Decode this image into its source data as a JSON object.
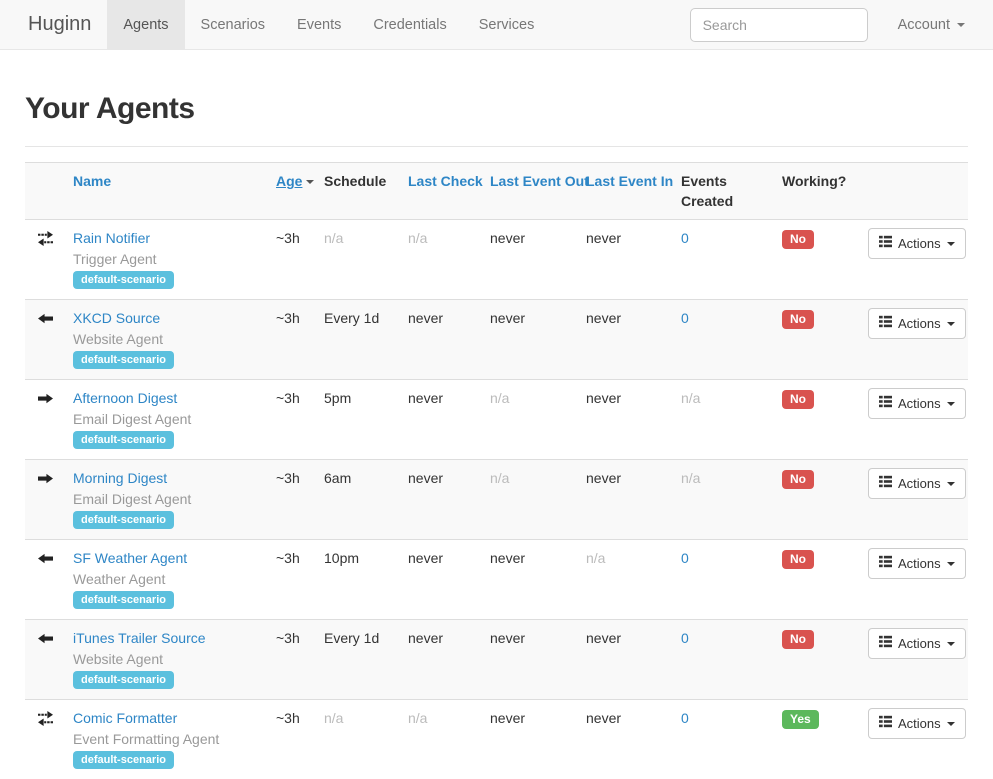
{
  "navbar": {
    "brand": "Huginn",
    "items": [
      {
        "label": "Agents",
        "active": true
      },
      {
        "label": "Scenarios",
        "active": false
      },
      {
        "label": "Events",
        "active": false
      },
      {
        "label": "Credentials",
        "active": false
      },
      {
        "label": "Services",
        "active": false
      }
    ],
    "search": {
      "placeholder": "Search"
    },
    "account": {
      "label": "Account"
    }
  },
  "page": {
    "title": "Your Agents"
  },
  "table": {
    "columns": [
      {
        "key": "icon",
        "label": "",
        "style": "plain"
      },
      {
        "key": "name",
        "label": "Name",
        "style": "link"
      },
      {
        "key": "age",
        "label": "Age",
        "style": "link",
        "sorted": "desc"
      },
      {
        "key": "schedule",
        "label": "Schedule",
        "style": "plain"
      },
      {
        "key": "last_check",
        "label": "Last Check",
        "style": "link"
      },
      {
        "key": "last_event_out",
        "label": "Last Event Out",
        "style": "link"
      },
      {
        "key": "last_event_in",
        "label": "Last Event In",
        "style": "link"
      },
      {
        "key": "events_created",
        "label": "Events Created",
        "style": "plain"
      },
      {
        "key": "working",
        "label": "Working?",
        "style": "plain"
      },
      {
        "key": "actions",
        "label": "",
        "style": "plain"
      }
    ],
    "actions_button_label": "Actions",
    "rows": [
      {
        "icon": "transfer",
        "name": "Rain Notifier",
        "type": "Trigger Agent",
        "scenario": "default-scenario",
        "age": "~3h",
        "schedule": "n/a",
        "last_check": "n/a",
        "last_event_out": "never",
        "last_event_in": "never",
        "events_created": "0",
        "working": "No"
      },
      {
        "icon": "arrow-left",
        "name": "XKCD Source",
        "type": "Website Agent",
        "scenario": "default-scenario",
        "age": "~3h",
        "schedule": "Every 1d",
        "last_check": "never",
        "last_event_out": "never",
        "last_event_in": "never",
        "events_created": "0",
        "working": "No"
      },
      {
        "icon": "arrow-right",
        "name": "Afternoon Digest",
        "type": "Email Digest Agent",
        "scenario": "default-scenario",
        "age": "~3h",
        "schedule": "5pm",
        "last_check": "never",
        "last_event_out": "n/a",
        "last_event_in": "never",
        "events_created": "n/a",
        "working": "No"
      },
      {
        "icon": "arrow-right",
        "name": "Morning Digest",
        "type": "Email Digest Agent",
        "scenario": "default-scenario",
        "age": "~3h",
        "schedule": "6am",
        "last_check": "never",
        "last_event_out": "n/a",
        "last_event_in": "never",
        "events_created": "n/a",
        "working": "No"
      },
      {
        "icon": "arrow-left",
        "name": "SF Weather Agent",
        "type": "Weather Agent",
        "scenario": "default-scenario",
        "age": "~3h",
        "schedule": "10pm",
        "last_check": "never",
        "last_event_out": "never",
        "last_event_in": "n/a",
        "events_created": "0",
        "working": "No"
      },
      {
        "icon": "arrow-left",
        "name": "iTunes Trailer Source",
        "type": "Website Agent",
        "scenario": "default-scenario",
        "age": "~3h",
        "schedule": "Every 1d",
        "last_check": "never",
        "last_event_out": "never",
        "last_event_in": "never",
        "events_created": "0",
        "working": "No"
      },
      {
        "icon": "transfer",
        "name": "Comic Formatter",
        "type": "Event Formatting Agent",
        "scenario": "default-scenario",
        "age": "~3h",
        "schedule": "n/a",
        "last_check": "n/a",
        "last_event_out": "never",
        "last_event_in": "never",
        "events_created": "0",
        "working": "Yes"
      }
    ]
  },
  "colors": {
    "link_blue": "#2e86c6",
    "scenario_badge": "#5bc0de",
    "working_no": "#d9534f",
    "working_yes": "#5cb85c",
    "navbar_bg": "#f8f8f8",
    "navbar_active_bg": "#e7e7e7",
    "stripe_bg": "#f9f9f9"
  }
}
